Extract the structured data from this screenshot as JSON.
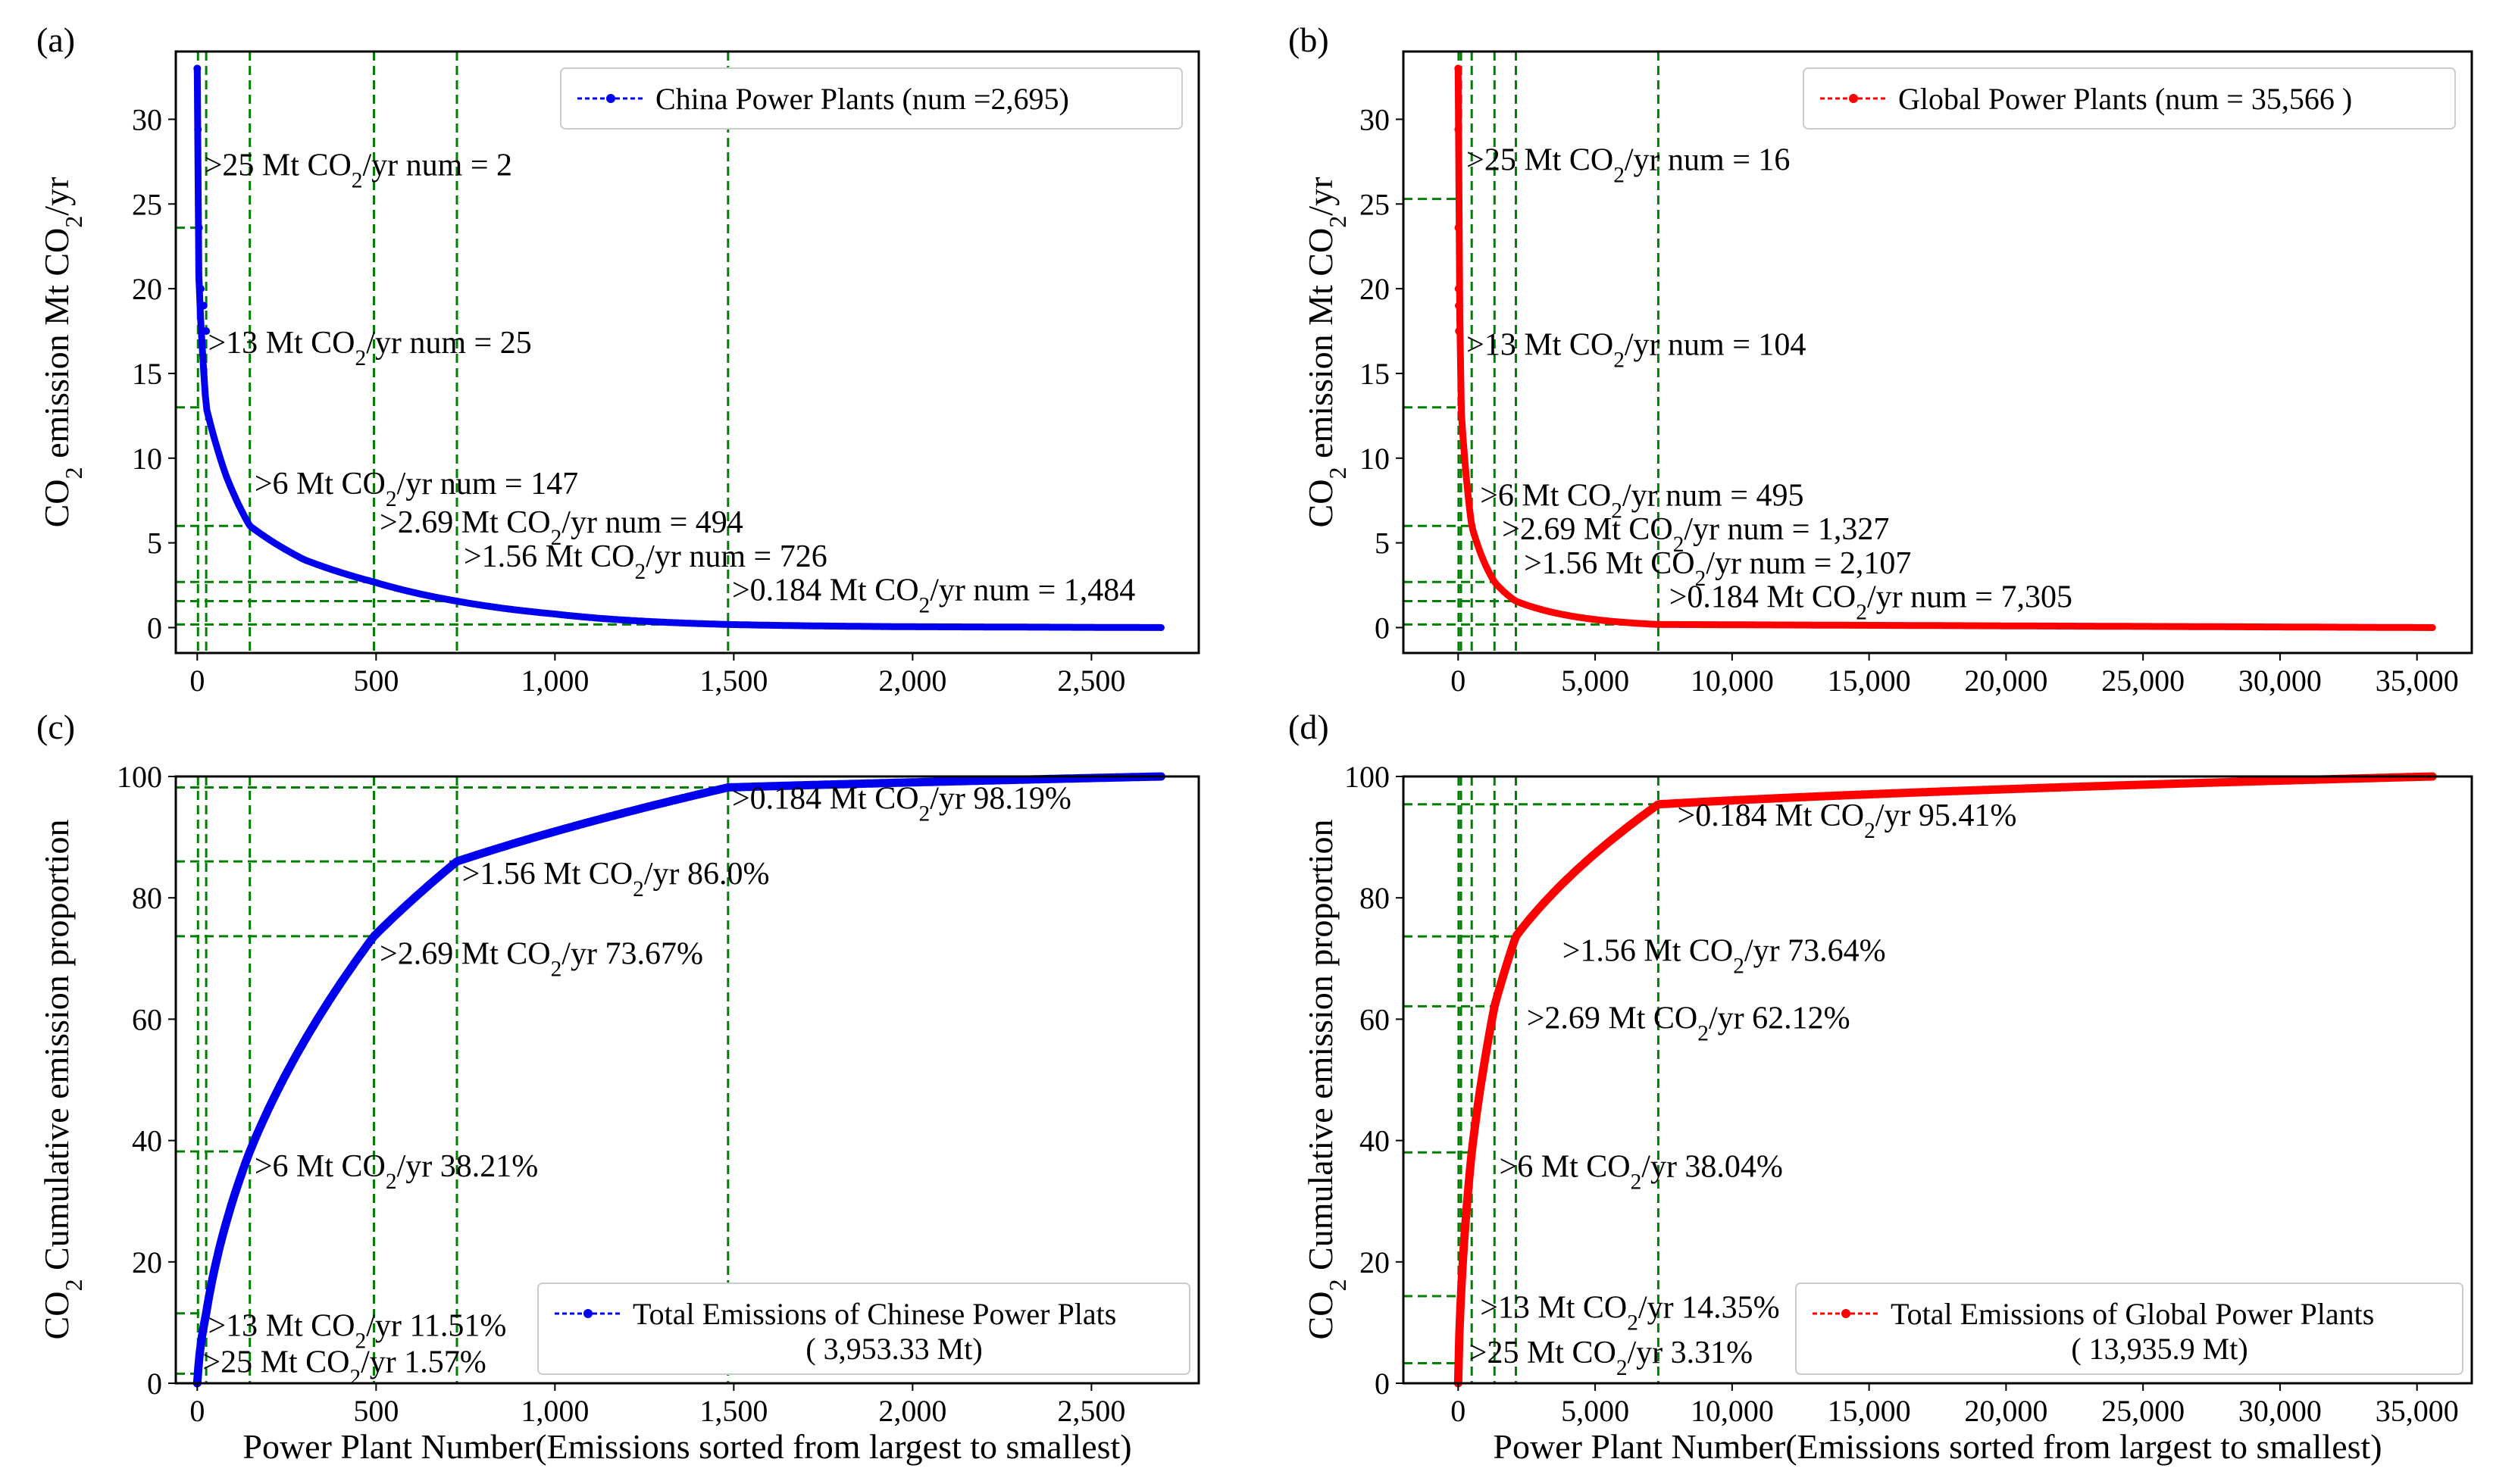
{
  "xlabel": "Power Plant Number(Emissions sorted from largest to smallest)",
  "ylabel_top": "CO₂ emission Mt CO₂/yr",
  "ylabel_bottom": "CO₂ Cumulative emission proportion",
  "colors": {
    "china": "#0000ee",
    "global": "#ff0000",
    "guide": "#008000"
  },
  "chart_data": [
    {
      "panel": "(a)",
      "type": "line",
      "title": "",
      "series": [
        {
          "name": "China Power Plants (num =2,695)",
          "color": "#0000ee",
          "n": 2695,
          "max": 33,
          "sample_points": [
            [
              0,
              33
            ],
            [
              2,
              25
            ],
            [
              5,
              20
            ],
            [
              25,
              13
            ],
            [
              80,
              9
            ],
            [
              147,
              6
            ],
            [
              300,
              4
            ],
            [
              494,
              2.69
            ],
            [
              726,
              1.56
            ],
            [
              1000,
              0.8
            ],
            [
              1484,
              0.184
            ],
            [
              2000,
              0.05
            ],
            [
              2695,
              0
            ]
          ]
        }
      ],
      "legend": {
        "text": "China Power Plants (num =2,695)",
        "position": "top-right"
      },
      "xlim": [
        -60,
        2800
      ],
      "ylim": [
        -1.5,
        34
      ],
      "xticks": [
        0,
        500,
        1000,
        1500,
        2000,
        2500
      ],
      "xtick_labels": [
        "0",
        "500",
        "1,000",
        "1,500",
        "2,000",
        "2,500"
      ],
      "yticks": [
        0,
        5,
        10,
        15,
        20,
        25,
        30
      ],
      "ytick_labels": [
        "0",
        "5",
        "10",
        "15",
        "20",
        "25",
        "30"
      ],
      "guides": [
        {
          "x": 2,
          "y": 23.6
        },
        {
          "x": 25,
          "y": 13
        },
        {
          "x": 147,
          "y": 6
        },
        {
          "x": 494,
          "y": 2.69
        },
        {
          "x": 726,
          "y": 1.56
        },
        {
          "x": 1484,
          "y": 0.184
        }
      ],
      "annotations": [
        {
          "label": ">25 Mt CO₂/yr num = 2",
          "x": 20,
          "y": 26.7
        },
        {
          "label": ">13 Mt CO₂/yr num = 25",
          "x": 30,
          "y": 16.2
        },
        {
          "label": ">6 Mt CO₂/yr num = 147",
          "x": 160,
          "y": 7.9
        },
        {
          "label": ">2.69 Mt CO₂/yr num = 494",
          "x": 510,
          "y": 5.6
        },
        {
          "label": ">1.56 Mt CO₂/yr num = 726",
          "x": 745,
          "y": 3.6
        },
        {
          "label": ">0.184 Mt CO₂/yr num = 1,484",
          "x": 1495,
          "y": 1.6
        }
      ]
    },
    {
      "panel": "(b)",
      "type": "line",
      "title": "",
      "series": [
        {
          "name": "Global Power Plants (num = 35,566 )",
          "color": "#ff0000",
          "n": 35566,
          "max": 33,
          "sample_points": [
            [
              0,
              33
            ],
            [
              16,
              25.3
            ],
            [
              104,
              13
            ],
            [
              495,
              6
            ],
            [
              1327,
              2.69
            ],
            [
              2107,
              1.56
            ],
            [
              7305,
              0.184
            ],
            [
              35566,
              0
            ]
          ]
        }
      ],
      "legend": {
        "text": "Global Power Plants  (num = 35,566 )",
        "position": "top-right"
      },
      "xlim": [
        -2000,
        37000
      ],
      "ylim": [
        -1.5,
        34
      ],
      "xticks": [
        0,
        5000,
        10000,
        15000,
        20000,
        25000,
        30000,
        35000
      ],
      "xtick_labels": [
        "0",
        "5,000",
        "10,000",
        "15,000",
        "20,000",
        "25,000",
        "30,000",
        "35,000"
      ],
      "yticks": [
        0,
        5,
        10,
        15,
        20,
        25,
        30
      ],
      "ytick_labels": [
        "0",
        "5",
        "10",
        "15",
        "20",
        "25",
        "30"
      ],
      "guides": [
        {
          "x": 16,
          "y": 25.3
        },
        {
          "x": 104,
          "y": 13
        },
        {
          "x": 495,
          "y": 6
        },
        {
          "x": 1327,
          "y": 2.69
        },
        {
          "x": 2107,
          "y": 1.56
        },
        {
          "x": 7305,
          "y": 0.184
        }
      ],
      "annotations": [
        {
          "label": ">25 Mt CO₂/yr num = 16",
          "x": 300,
          "y": 27
        },
        {
          "label": ">13 Mt CO₂/yr num = 104",
          "x": 300,
          "y": 16.1
        },
        {
          "label": ">6 Mt CO₂/yr num = 495",
          "x": 800,
          "y": 7.2
        },
        {
          "label": ">2.69 Mt CO₂/yr num =  1,327",
          "x": 1600,
          "y": 5.2
        },
        {
          "label": ">1.56 Mt CO₂/yr num = 2,107",
          "x": 2400,
          "y": 3.2
        },
        {
          "label": ">0.184 Mt CO₂/yr num = 7,305",
          "x": 7700,
          "y": 1.2
        }
      ]
    },
    {
      "panel": "(c)",
      "type": "line",
      "title": "",
      "series": [
        {
          "name": "Total Emissions of Chinese Power Plats",
          "color": "#0000ee",
          "n": 2695,
          "total_mt": 3953.33,
          "sample_points": [
            [
              0,
              0
            ],
            [
              2,
              1.57
            ],
            [
              25,
              11.51
            ],
            [
              147,
              38.21
            ],
            [
              494,
              73.67
            ],
            [
              726,
              86.0
            ],
            [
              1484,
              98.19
            ],
            [
              2695,
              100
            ]
          ]
        }
      ],
      "legend": {
        "text": "Total Emissions of Chinese Power Plats",
        "subtext": "( 3,953.33 Mt)",
        "position": "bottom-right"
      },
      "xlim": [
        -60,
        2800
      ],
      "ylim": [
        0,
        100
      ],
      "xticks": [
        0,
        500,
        1000,
        1500,
        2000,
        2500
      ],
      "xtick_labels": [
        "0",
        "500",
        "1,000",
        "1,500",
        "2,000",
        "2,500"
      ],
      "yticks": [
        0,
        20,
        40,
        60,
        80,
        100
      ],
      "ytick_labels": [
        "0",
        "20",
        "40",
        "60",
        "80",
        "100"
      ],
      "guides": [
        {
          "x": 2,
          "y": 1.57
        },
        {
          "x": 25,
          "y": 11.51
        },
        {
          "x": 147,
          "y": 38.21
        },
        {
          "x": 494,
          "y": 73.67
        },
        {
          "x": 726,
          "y": 86.0
        },
        {
          "x": 1484,
          "y": 98.19
        }
      ],
      "annotations": [
        {
          "label": ">25 Mt CO₂/yr  1.57%",
          "x": 15,
          "y": 1.8
        },
        {
          "label": ">13 Mt CO₂/yr  11.51%",
          "x": 30,
          "y": 7.8
        },
        {
          "label": ">6 Mt CO₂/yr  38.21%",
          "x": 160,
          "y": 34.1
        },
        {
          "label": ">2.69 Mt CO₂/yr  73.67%",
          "x": 510,
          "y": 69.1
        },
        {
          "label": ">1.56 Mt CO₂/yr  86.0%",
          "x": 740,
          "y": 82.3
        },
        {
          "label": ">0.184 Mt CO₂/yr  98.19%",
          "x": 1495,
          "y": 94.7
        }
      ]
    },
    {
      "panel": "(d)",
      "type": "line",
      "title": "",
      "series": [
        {
          "name": "Total Emissions of Global Power Plants",
          "color": "#ff0000",
          "n": 35566,
          "total_mt": 13935.9,
          "sample_points": [
            [
              0,
              0
            ],
            [
              16,
              3.31
            ],
            [
              104,
              14.35
            ],
            [
              495,
              38.04
            ],
            [
              1327,
              62.12
            ],
            [
              2107,
              73.64
            ],
            [
              7305,
              95.41
            ],
            [
              35566,
              100
            ]
          ]
        }
      ],
      "legend": {
        "text": "Total Emissions of Global Power Plants",
        "subtext": "( 13,935.9 Mt)",
        "position": "bottom-right"
      },
      "xlim": [
        -2000,
        37000
      ],
      "ylim": [
        0,
        100
      ],
      "xticks": [
        0,
        5000,
        10000,
        15000,
        20000,
        25000,
        30000,
        35000
      ],
      "xtick_labels": [
        "0",
        "5,000",
        "10,000",
        "15,000",
        "20,000",
        "25,000",
        "30,000",
        "35,000"
      ],
      "yticks": [
        0,
        20,
        40,
        60,
        80,
        100
      ],
      "ytick_labels": [
        "0",
        "20",
        "40",
        "60",
        "80",
        "100"
      ],
      "guides": [
        {
          "x": 16,
          "y": 3.31
        },
        {
          "x": 104,
          "y": 14.35
        },
        {
          "x": 495,
          "y": 38.04
        },
        {
          "x": 1327,
          "y": 62.12
        },
        {
          "x": 2107,
          "y": 73.64
        },
        {
          "x": 7305,
          "y": 95.41
        }
      ],
      "annotations": [
        {
          "label": ">25 Mt CO₂/yr  3.31%",
          "x": 400,
          "y": 3.4
        },
        {
          "label": ">13 Mt CO₂/yr  14.35%",
          "x": 800,
          "y": 10.8
        },
        {
          "label": ">6 Mt CO₂/yr  38.04%",
          "x": 1500,
          "y": 34.0
        },
        {
          "label": ">2.69 Mt CO₂/yr  62.12%",
          "x": 2500,
          "y": 58.5
        },
        {
          "label": ">1.56 Mt CO₂/yr  73.64%",
          "x": 3800,
          "y": 69.6
        },
        {
          "label": ">0.184 Mt CO₂/yr  95.41%",
          "x": 8000,
          "y": 91.9
        }
      ]
    }
  ]
}
